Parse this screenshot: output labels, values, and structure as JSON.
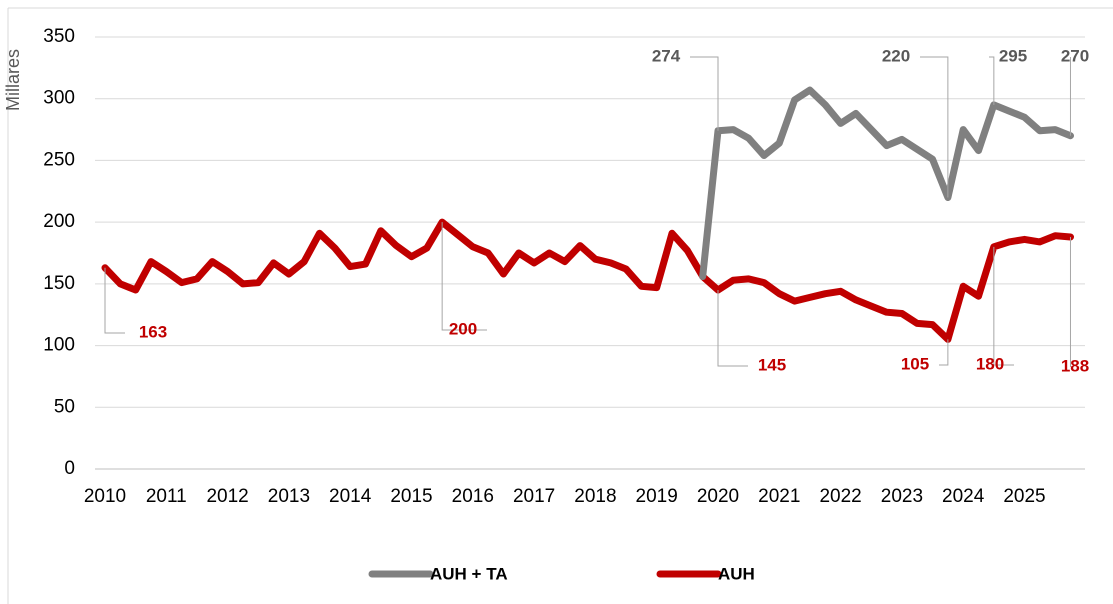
{
  "chart_data": {
    "type": "line",
    "y_axis_label": "Millares",
    "categories": [
      "2010",
      null,
      null,
      null,
      "2011",
      null,
      null,
      null,
      "2012",
      null,
      null,
      null,
      "2013",
      null,
      null,
      null,
      "2014",
      null,
      null,
      null,
      "2015",
      null,
      null,
      null,
      "2016",
      null,
      null,
      null,
      "2017",
      null,
      null,
      null,
      "2018",
      null,
      null,
      null,
      "2019",
      null,
      null,
      null,
      "2020",
      null,
      null,
      null,
      "2021",
      null,
      null,
      null,
      "2022",
      null,
      null,
      null,
      "2023",
      null,
      null,
      null,
      "2024",
      null,
      null,
      null,
      "2025",
      null,
      null,
      null
    ],
    "series": [
      {
        "name": "AUH + TA",
        "color": "#808080",
        "values": [
          null,
          null,
          null,
          null,
          null,
          null,
          null,
          null,
          null,
          null,
          null,
          null,
          null,
          null,
          null,
          null,
          null,
          null,
          null,
          null,
          null,
          null,
          null,
          null,
          null,
          null,
          null,
          null,
          null,
          null,
          null,
          null,
          null,
          null,
          null,
          null,
          null,
          null,
          null,
          156,
          274,
          275,
          268,
          254,
          264,
          299,
          307,
          295,
          280,
          288,
          275,
          262,
          267,
          259,
          251,
          220,
          275,
          258,
          295,
          290,
          285,
          274,
          275,
          270
        ]
      },
      {
        "name": "AUH",
        "color": "#c00000",
        "values": [
          163,
          150,
          145,
          168,
          160,
          151,
          154,
          168,
          160,
          150,
          151,
          167,
          158,
          168,
          191,
          179,
          164,
          166,
          193,
          181,
          172,
          179,
          200,
          190,
          180,
          175,
          158,
          175,
          167,
          175,
          168,
          181,
          170,
          167,
          162,
          148,
          147,
          191,
          177,
          156,
          145,
          153,
          154,
          151,
          142,
          136,
          139,
          142,
          144,
          137,
          132,
          127,
          126,
          118,
          117,
          105,
          148,
          140,
          180,
          184,
          186,
          184,
          189,
          188
        ]
      }
    ],
    "ylim": [
      0,
      350
    ],
    "yticks": [
      0,
      50,
      100,
      150,
      200,
      250,
      300,
      350
    ],
    "grid": true,
    "legend": "bottom"
  }
}
